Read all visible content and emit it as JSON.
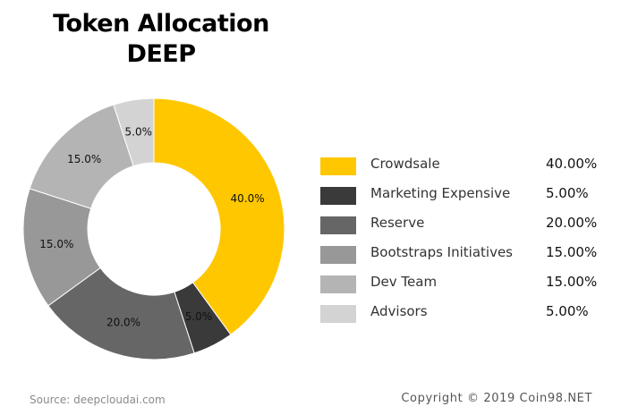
{
  "chart_data": {
    "type": "pie",
    "title": "Token Allocation",
    "subtitle": "DEEP",
    "donut": true,
    "legend_placement": "right",
    "slices": [
      {
        "name": "Crowdsale",
        "value": 40,
        "slice_label": "40.0%",
        "legend_value": "40.00%",
        "color": "#FFC700"
      },
      {
        "name": "Marketing Expensive",
        "value": 5,
        "slice_label": "5.0%",
        "legend_value": "5.00%",
        "color": "#3A3A3A"
      },
      {
        "name": "Reserve",
        "value": 20,
        "slice_label": "20.0%",
        "legend_value": "20.00%",
        "color": "#666666"
      },
      {
        "name": "Bootstraps Initiatives",
        "value": 15,
        "slice_label": "15.0%",
        "legend_value": "15.00%",
        "color": "#989898"
      },
      {
        "name": "Dev Team",
        "value": 15,
        "slice_label": "15.0%",
        "legend_value": "15.00%",
        "color": "#B4B4B4"
      },
      {
        "name": "Advisors",
        "value": 5,
        "slice_label": "5.0%",
        "legend_value": "5.00%",
        "color": "#D3D3D3"
      }
    ]
  },
  "footer": {
    "source": "Source: deepcloudai.com",
    "copyright": "Copyright © 2019 Coin98.NET"
  }
}
